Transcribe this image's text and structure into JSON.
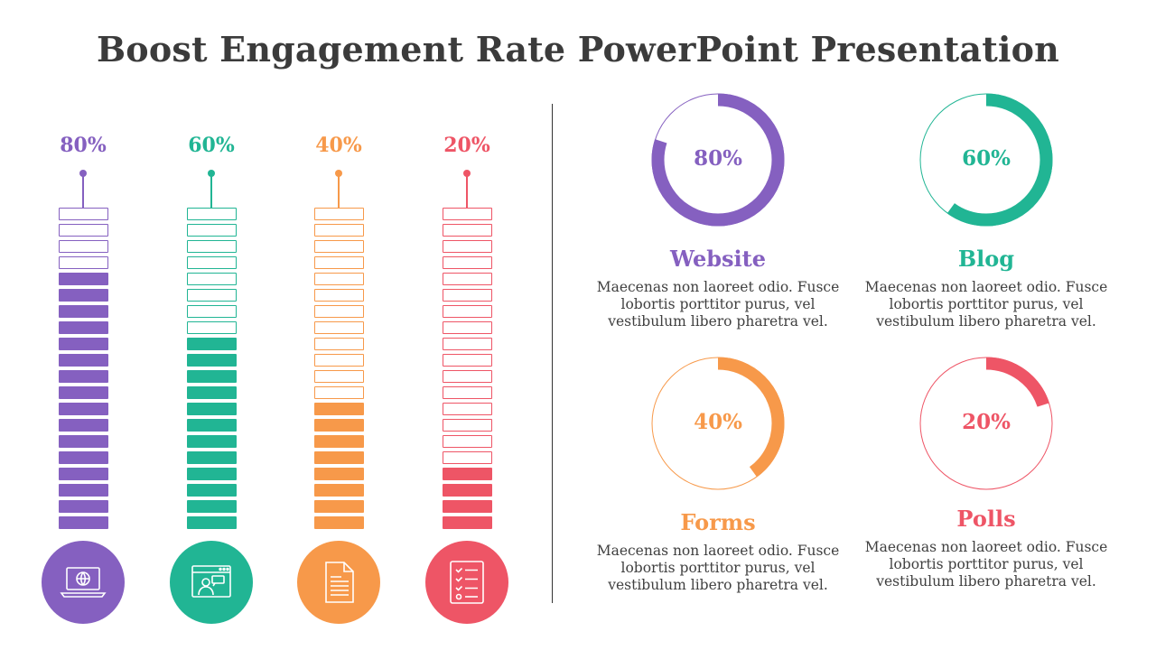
{
  "title": "Boost Engagement Rate PowerPoint Presentation",
  "chart_data": [
    {
      "type": "bar",
      "categories": [
        "Website",
        "Blog",
        "Forms",
        "Polls"
      ],
      "values": [
        80,
        60,
        40,
        20
      ],
      "value_labels": [
        "80%",
        "60%",
        "40%",
        "20%"
      ],
      "segments_total": 20,
      "ylim": [
        0,
        100
      ]
    },
    {
      "type": "pie",
      "style": "donut",
      "categories": [
        "Website",
        "Blog",
        "Forms",
        "Polls"
      ],
      "values": [
        80,
        60,
        40,
        20
      ],
      "value_labels": [
        "80%",
        "60%",
        "40%",
        "20%"
      ]
    }
  ],
  "columns": [
    {
      "label": "80%",
      "value": 80,
      "color": "#8560c0",
      "icon": "laptop-globe-icon"
    },
    {
      "label": "60%",
      "value": 60,
      "color": "#21b594",
      "icon": "browser-chat-icon"
    },
    {
      "label": "40%",
      "value": 40,
      "color": "#f7994a",
      "icon": "document-icon"
    },
    {
      "label": "20%",
      "value": 20,
      "color": "#ee5566",
      "icon": "checklist-icon"
    }
  ],
  "donuts": [
    {
      "name": "Website",
      "label": "80%",
      "value": 80,
      "color": "#8560c0",
      "desc": [
        "Maecenas non laoreet odio. Fusce",
        "lobortis porttitor purus, vel",
        "vestibulum libero pharetra vel."
      ]
    },
    {
      "name": "Blog",
      "label": "60%",
      "value": 60,
      "color": "#21b594",
      "desc": [
        "Maecenas non laoreet odio. Fusce",
        "lobortis porttitor purus, vel",
        "vestibulum libero pharetra vel."
      ]
    },
    {
      "name": "Forms",
      "label": "40%",
      "value": 40,
      "color": "#f7994a",
      "desc": [
        "Maecenas non laoreet odio. Fusce",
        "lobortis porttitor purus, vel",
        "vestibulum libero pharetra vel."
      ]
    },
    {
      "name": "Polls",
      "label": "20%",
      "value": 20,
      "color": "#ee5566",
      "desc": [
        "Maecenas non laoreet odio. Fusce",
        "lobortis porttitor purus, vel",
        "vestibulum libero pharetra vel."
      ]
    }
  ]
}
